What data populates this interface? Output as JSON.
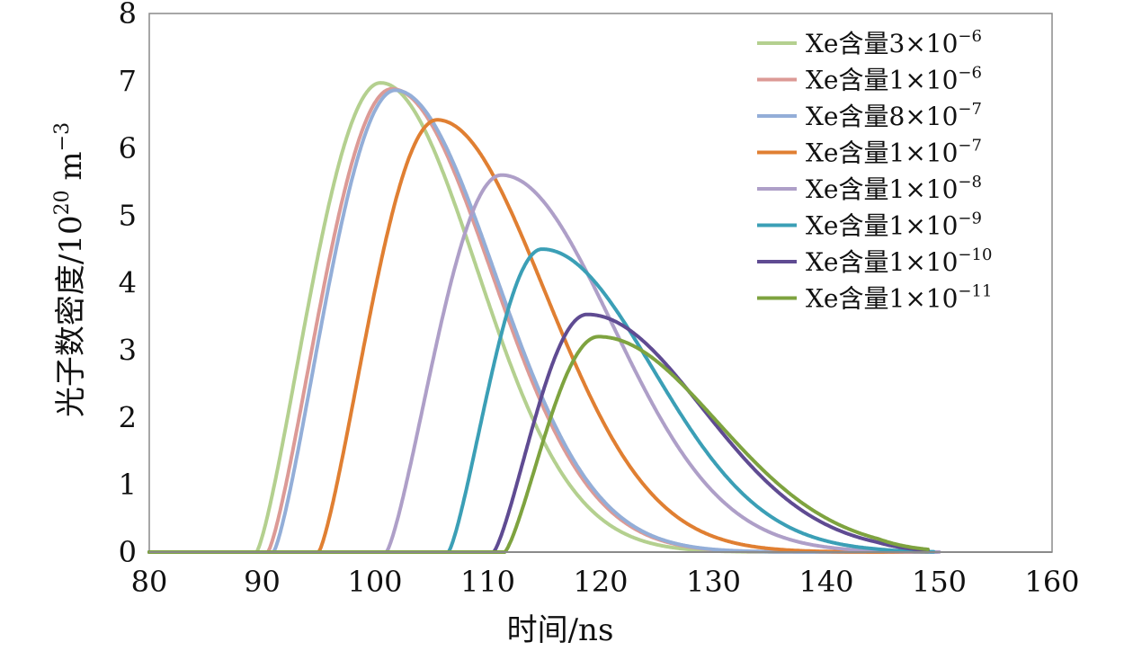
{
  "chart_data": {
    "type": "line",
    "xlabel": "时间/ns",
    "ylabel_main": "光子数密度/10",
    "ylabel_exp": "20",
    "ylabel_unit": " m",
    "ylabel_unit_exp": "−3",
    "xlim": [
      80,
      160
    ],
    "ylim": [
      0,
      8
    ],
    "x_ticks": [
      "80",
      "90",
      "100",
      "110",
      "120",
      "130",
      "140",
      "150",
      "160"
    ],
    "y_ticks": [
      "0",
      "1",
      "2",
      "3",
      "4",
      "5",
      "6",
      "7",
      "8"
    ],
    "legend_position": "top-right",
    "series": [
      {
        "name": "Xe含量3×10⁻⁶",
        "label": "Xe含量3×10",
        "exp": "−6",
        "color": "#b4d08f",
        "onset": 89.5,
        "peak_x": 100.5,
        "peak_y": 6.97,
        "decay": 8.5,
        "end": 149
      },
      {
        "name": "Xe含量1×10⁻⁶",
        "label": "Xe含量1×10",
        "exp": "−6",
        "color": "#dc9a96",
        "onset": 90.5,
        "peak_x": 101.5,
        "peak_y": 6.88,
        "decay": 8.8,
        "end": 149.5
      },
      {
        "name": "Xe含量8×10⁻⁷",
        "label": "Xe含量8×10",
        "exp": "−7",
        "color": "#93aed8",
        "onset": 91.0,
        "peak_x": 101.8,
        "peak_y": 6.86,
        "decay": 8.8,
        "end": 149.8
      },
      {
        "name": "Xe含量1×10⁻⁷",
        "label": "Xe含量1×10",
        "exp": "−7",
        "color": "#e07f32",
        "onset": 95.0,
        "peak_x": 105.5,
        "peak_y": 6.42,
        "decay": 9.5,
        "end": 149
      },
      {
        "name": "Xe含量1×10⁻⁸",
        "label": "Xe含量1×10",
        "exp": "−8",
        "color": "#ae9fc8",
        "onset": 101.0,
        "peak_x": 111.2,
        "peak_y": 5.6,
        "decay": 9.8,
        "end": 150
      },
      {
        "name": "Xe含量1×10⁻⁹",
        "label": "Xe含量1×10",
        "exp": "−9",
        "color": "#3b9fb6",
        "onset": 106.5,
        "peak_x": 114.8,
        "peak_y": 4.5,
        "decay": 9.8,
        "end": 149.5
      },
      {
        "name": "Xe含量1×10⁻¹⁰",
        "label": "Xe含量1×10",
        "exp": "−10",
        "color": "#5f4b92",
        "onset": 110.5,
        "peak_x": 118.8,
        "peak_y": 3.53,
        "decay": 10.2,
        "end": 149
      },
      {
        "name": "Xe含量1×10⁻¹¹",
        "label": "Xe含量1×10",
        "exp": "−11",
        "color": "#7ea33f",
        "onset": 111.5,
        "peak_x": 119.8,
        "peak_y": 3.2,
        "decay": 10.5,
        "end": 149
      }
    ]
  }
}
